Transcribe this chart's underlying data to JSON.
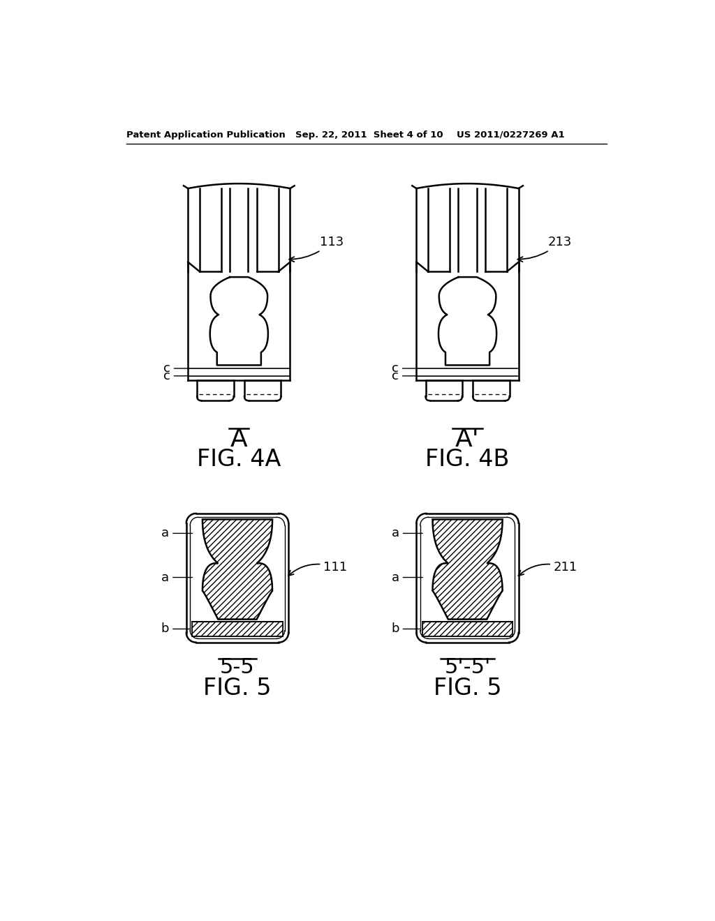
{
  "bg_color": "#ffffff",
  "header_left": "Patent Application Publication",
  "header_center": "Sep. 22, 2011  Sheet 4 of 10",
  "header_right": "US 2011/0227269 A1",
  "fig4a_label": "FIG. 4A",
  "fig4a_sublabel": "A",
  "fig4b_label": "FIG. 4B",
  "fig4b_sublabel": "A'",
  "fig5a_label": "FIG. 5",
  "fig5a_sublabel": "5-5",
  "fig5b_label": "FIG. 5",
  "fig5b_sublabel": "5'-5'",
  "ref_113": "113",
  "ref_213": "213",
  "ref_111": "111",
  "ref_211": "211",
  "line_color": "#000000",
  "hatch_color": "#000000",
  "fill_color": "#d0d0d0"
}
